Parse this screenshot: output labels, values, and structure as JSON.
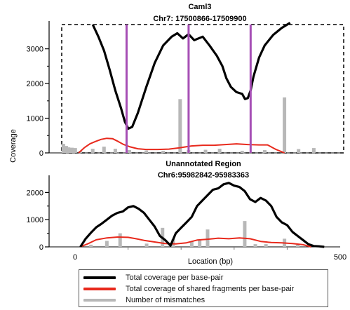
{
  "chart_data": [
    {
      "type": "line",
      "title": "Caml3",
      "subtitle": "Chr7: 17500866-17509900",
      "ylabel": "Coverage",
      "ylim": [
        0,
        3700
      ],
      "yticks": [
        0,
        1000,
        2000,
        3000
      ],
      "yticklabels": [
        "0",
        "1000",
        "2000",
        "3000"
      ],
      "xlim": [
        0,
        500
      ],
      "dashed_box": true,
      "exon_markers_x": [
        115,
        225,
        335
      ],
      "series": [
        {
          "name": "Total coverage per base-pair",
          "color": "#000000",
          "x": [
            55,
            65,
            75,
            85,
            95,
            105,
            112,
            118,
            125,
            135,
            150,
            165,
            180,
            195,
            205,
            215,
            225,
            235,
            250,
            262,
            275,
            285,
            292,
            300,
            310,
            320,
            325,
            330,
            335,
            340,
            350,
            360,
            375,
            390,
            405
          ],
          "y": [
            3700,
            3350,
            2950,
            2400,
            1800,
            1300,
            900,
            700,
            750,
            1150,
            1900,
            2600,
            3100,
            3350,
            3450,
            3300,
            3420,
            3250,
            3350,
            3100,
            2800,
            2500,
            2150,
            1900,
            1750,
            1700,
            1550,
            1580,
            1800,
            2200,
            2750,
            3100,
            3400,
            3600,
            3750
          ]
        },
        {
          "name": "Total coverage of shared fragments per base-pair",
          "color": "#e8291c",
          "x": [
            30,
            40,
            50,
            60,
            70,
            80,
            90,
            100,
            110,
            120,
            135,
            150,
            170,
            190,
            210,
            230,
            250,
            270,
            290,
            310,
            330,
            350,
            365,
            380,
            395
          ],
          "y": [
            0,
            150,
            260,
            330,
            390,
            420,
            410,
            330,
            240,
            180,
            120,
            100,
            100,
            110,
            150,
            200,
            220,
            220,
            240,
            260,
            240,
            230,
            230,
            100,
            0
          ]
        }
      ],
      "bars": {
        "name": "Number of mismatches",
        "color": "#b8b8b8",
        "x": [
          3,
          8,
          12,
          18,
          24,
          33,
          55,
          75,
          95,
          120,
          150,
          180,
          210,
          225,
          255,
          280,
          320,
          360,
          395,
          420,
          447
        ],
        "values": [
          260,
          200,
          160,
          150,
          140,
          60,
          120,
          180,
          120,
          80,
          70,
          60,
          1550,
          80,
          90,
          120,
          60,
          80,
          1600,
          110,
          140
        ]
      }
    },
    {
      "type": "line",
      "title": "Unannotated Region",
      "subtitle": "Chr6:95982842-95983363",
      "ylim": [
        0,
        2500
      ],
      "yticks": [
        0,
        1000,
        2000
      ],
      "yticklabels": [
        "0",
        "1000",
        "2000"
      ],
      "xlim": [
        0,
        500
      ],
      "xticks": [
        0,
        500
      ],
      "xticklabels": [
        "0",
        "500"
      ],
      "xlabel": "Location  (bp)",
      "series": [
        {
          "name": "Total coverage per base-pair",
          "color": "#000000",
          "x": [
            10,
            20,
            30,
            40,
            50,
            60,
            70,
            80,
            90,
            100,
            110,
            120,
            130,
            140,
            150,
            160,
            170,
            180,
            190,
            200,
            210,
            220,
            230,
            240,
            250,
            260,
            270,
            280,
            290,
            300,
            310,
            320,
            330,
            340,
            350,
            360,
            370,
            380,
            390,
            400,
            410,
            420,
            430,
            440,
            450,
            460,
            470
          ],
          "y": [
            0,
            300,
            520,
            720,
            850,
            1000,
            1150,
            1250,
            1300,
            1450,
            1500,
            1400,
            1250,
            1000,
            750,
            400,
            250,
            50,
            500,
            700,
            900,
            1100,
            1500,
            1700,
            1900,
            2100,
            2150,
            2300,
            2350,
            2250,
            2200,
            2050,
            1750,
            1650,
            1800,
            1700,
            1500,
            1100,
            900,
            800,
            550,
            400,
            250,
            100,
            30,
            20,
            0
          ]
        },
        {
          "name": "Total coverage of shared fragments per base-pair",
          "color": "#e8291c",
          "x": [
            10,
            25,
            40,
            60,
            80,
            100,
            115,
            130,
            150,
            170,
            190,
            210,
            230,
            250,
            270,
            290,
            310,
            330,
            350,
            370,
            390,
            410,
            430,
            445
          ],
          "y": [
            0,
            120,
            260,
            330,
            360,
            350,
            300,
            240,
            180,
            120,
            110,
            150,
            250,
            280,
            320,
            300,
            330,
            300,
            200,
            160,
            150,
            120,
            80,
            0
          ]
        }
      ],
      "bars": {
        "name": "Number of mismatches",
        "color": "#b8b8b8",
        "x": [
          30,
          60,
          85,
          135,
          165,
          185,
          220,
          235,
          250,
          320,
          340,
          360,
          395,
          420
        ],
        "values": [
          80,
          220,
          500,
          120,
          700,
          280,
          200,
          240,
          640,
          950,
          100,
          100,
          300,
          80
        ]
      }
    }
  ],
  "legend": {
    "items": [
      {
        "label": "Total coverage per base-pair",
        "color": "#000000"
      },
      {
        "label": "Total coverage of shared fragments per base-pair",
        "color": "#e8291c"
      },
      {
        "label": "Number of mismatches",
        "color": "#b8b8b8"
      }
    ]
  },
  "colors": {
    "exon_marker": "#a64fb5",
    "axis": "#000000"
  }
}
